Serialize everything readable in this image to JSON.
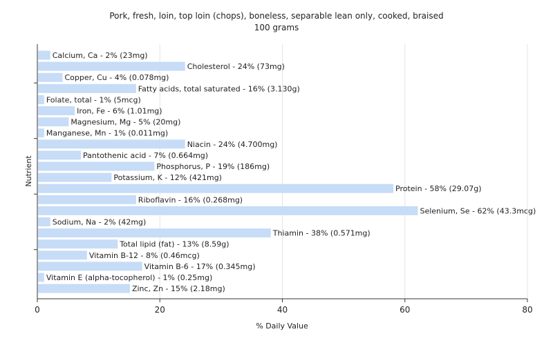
{
  "chart_data": {
    "type": "bar",
    "orientation": "horizontal",
    "title": "Pork, fresh, loin, top loin (chops), boneless, separable lean only, cooked, braised",
    "subtitle": "100 grams",
    "xlabel": "% Daily Value",
    "ylabel": "Nutrient",
    "xlim": [
      0,
      80
    ],
    "xticks": [
      "0",
      "20",
      "40",
      "60",
      "80"
    ],
    "grid": true,
    "bar_color": "#c6dcf7",
    "categories": [
      "Calcium, Ca - 2% (23mg)",
      "Cholesterol - 24% (73mg)",
      "Copper, Cu - 4% (0.078mg)",
      "Fatty acids, total saturated - 16% (3.130g)",
      "Folate, total - 1% (5mcg)",
      "Iron, Fe - 6% (1.01mg)",
      "Magnesium, Mg - 5% (20mg)",
      "Manganese, Mn - 1% (0.011mg)",
      "Niacin - 24% (4.700mg)",
      "Pantothenic acid - 7% (0.664mg)",
      "Phosphorus, P - 19% (186mg)",
      "Potassium, K - 12% (421mg)",
      "Protein - 58% (29.07g)",
      "Riboflavin - 16% (0.268mg)",
      "Selenium, Se - 62% (43.3mcg)",
      "Sodium, Na - 2% (42mg)",
      "Thiamin - 38% (0.571mg)",
      "Total lipid (fat) - 13% (8.59g)",
      "Vitamin B-12 - 8% (0.46mcg)",
      "Vitamin B-6 - 17% (0.345mg)",
      "Vitamin E (alpha-tocopherol) - 1% (0.25mg)",
      "Zinc, Zn - 15% (2.18mg)"
    ],
    "values": [
      2,
      24,
      4,
      16,
      1,
      6,
      5,
      1,
      24,
      7,
      19,
      12,
      58,
      16,
      62,
      2,
      38,
      13,
      8,
      17,
      1,
      15
    ]
  }
}
